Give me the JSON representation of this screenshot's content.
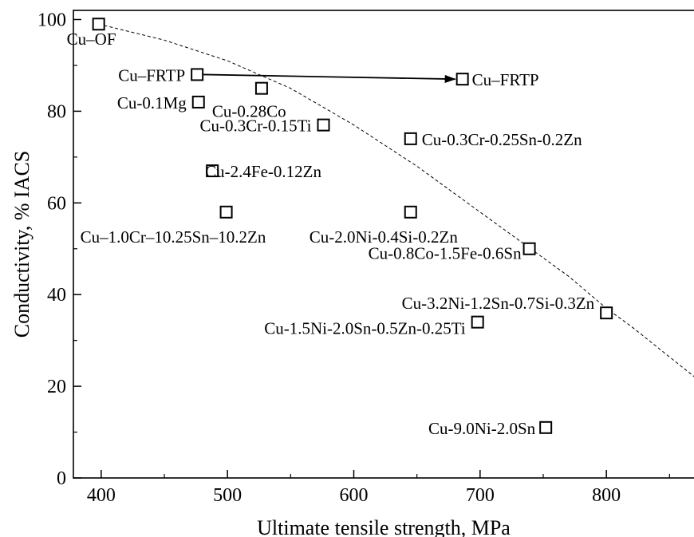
{
  "chart_data": {
    "type": "scatter",
    "xlabel": "Ultimate tensile strength, MPa",
    "ylabel": "Conductivity, % IACS",
    "xlim": [
      378,
      870
    ],
    "ylim": [
      0,
      102
    ],
    "xticks": [
      400,
      500,
      600,
      700,
      800
    ],
    "yticks": [
      0,
      20,
      40,
      60,
      80,
      100
    ],
    "grid": false,
    "legend": "none",
    "marker": "open-square",
    "points": [
      {
        "label": "Cu–OF",
        "x": 398,
        "y": 99
      },
      {
        "label": "Cu–FRTP",
        "x": 476,
        "y": 88
      },
      {
        "label": "Cu-0.1Mg",
        "x": 477,
        "y": 82
      },
      {
        "label": "Cu-0.28Co",
        "x": 527,
        "y": 85
      },
      {
        "label": "Cu-0.3Cr-0.15Ti",
        "x": 576,
        "y": 77
      },
      {
        "label": "Cu-2.4Fe-0.12Zn",
        "x": 488,
        "y": 67
      },
      {
        "label": "Cu–1.0Cr–10.25Sn–10.2Zn",
        "x": 499,
        "y": 58
      },
      {
        "label": "Cu–FRTP",
        "x": 686,
        "y": 87
      },
      {
        "label": "Cu-0.3Cr-0.25Sn-0.2Zn",
        "x": 645,
        "y": 74
      },
      {
        "label": "Cu-2.0Ni-0.4Si-0.2Zn",
        "x": 645,
        "y": 58
      },
      {
        "label": "Cu-0.8Co-1.5Fe-0.6Sn",
        "x": 739,
        "y": 50
      },
      {
        "label": "Cu-3.2Ni-1.2Sn-0.7Si-0.3Zn",
        "x": 800,
        "y": 36
      },
      {
        "label": "Cu-1.5Ni-2.0Sn-0.5Zn-0.25Ti",
        "x": 698,
        "y": 34
      },
      {
        "label": "Cu-9.0Ni-2.0Sn",
        "x": 752,
        "y": 11
      }
    ],
    "arrow": {
      "from": [
        476,
        88
      ],
      "to": [
        686,
        87
      ]
    },
    "trend_curve": [
      [
        398,
        99
      ],
      [
        450,
        95.5
      ],
      [
        500,
        91
      ],
      [
        550,
        85
      ],
      [
        600,
        77
      ],
      [
        650,
        68
      ],
      [
        700,
        58
      ],
      [
        740,
        50
      ],
      [
        770,
        44
      ],
      [
        800,
        37
      ],
      [
        820,
        33
      ],
      [
        870,
        22
      ]
    ]
  }
}
